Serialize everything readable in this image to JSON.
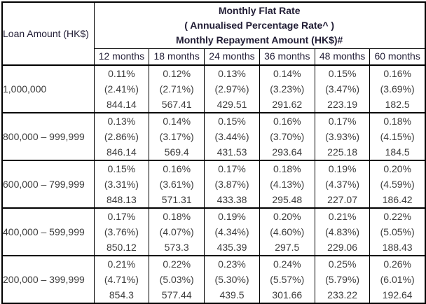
{
  "table": {
    "corner_label": "Loan Amount (HK$)",
    "header_lines": [
      "Monthly Flat Rate",
      "( Annualised Percentage Rate^ )",
      "Monthly Repayment Amount (HK$)#"
    ],
    "columns": [
      "12 months",
      "18 months",
      "24 months",
      "36 months",
      "48 months",
      "60 months"
    ],
    "cell_line_meaning": [
      "monthly-flat-rate",
      "annualised-percentage-rate",
      "monthly-repayment-amount"
    ],
    "rows": [
      {
        "label": "1,000,000",
        "cells": [
          [
            "0.11%",
            "(2.41%)",
            "844.14"
          ],
          [
            "0.12%",
            "(2.71%)",
            "567.41"
          ],
          [
            "0.13%",
            "(2.97%)",
            "429.51"
          ],
          [
            "0.14%",
            "(3.23%)",
            "291.62"
          ],
          [
            "0.15%",
            "(3.47%)",
            "223.19"
          ],
          [
            "0.16%",
            "(3.69%)",
            "182.5"
          ]
        ]
      },
      {
        "label": "800,000 – 999,999",
        "cells": [
          [
            "0.13%",
            "(2.86%)",
            "846.14"
          ],
          [
            "0.14%",
            "(3.17%)",
            "569.4"
          ],
          [
            "0.15%",
            "(3.44%)",
            "431.53"
          ],
          [
            "0.16%",
            "(3.70%)",
            "293.64"
          ],
          [
            "0.17%",
            "(3.93%)",
            "225.18"
          ],
          [
            "0.18%",
            "(4.15%)",
            "184.5"
          ]
        ]
      },
      {
        "label": "600,000 – 799,999",
        "cells": [
          [
            "0.15%",
            "(3.31%)",
            "848.13"
          ],
          [
            "0.16%",
            "(3.61%)",
            "571.31"
          ],
          [
            "0.17%",
            "(3.87%)",
            "433.38"
          ],
          [
            "0.18%",
            "(4.13%)",
            "295.48"
          ],
          [
            "0.19%",
            "(4.37%)",
            "227.07"
          ],
          [
            "0.20%",
            "(4.59%)",
            "186.42"
          ]
        ]
      },
      {
        "label": "400,000 – 599,999",
        "cells": [
          [
            "0.17%",
            "(3.76%)",
            "850.12"
          ],
          [
            "0.18%",
            "(4.07%)",
            "573.3"
          ],
          [
            "0.19%",
            "(4.34%)",
            "435.39"
          ],
          [
            "0.20%",
            "(4.60%)",
            "297.5"
          ],
          [
            "0.21%",
            "(4.83%)",
            "229.06"
          ],
          [
            "0.22%",
            "(5.05%)",
            "188.43"
          ]
        ]
      },
      {
        "label": "200,000 – 399,999",
        "cells": [
          [
            "0.21%",
            "(4.71%)",
            "854.3"
          ],
          [
            "0.22%",
            "(5.03%)",
            "577.44"
          ],
          [
            "0.23%",
            "(5.30%)",
            "439.5"
          ],
          [
            "0.24%",
            "(5.57%)",
            "301.66"
          ],
          [
            "0.25%",
            "(5.79%)",
            "233.22"
          ],
          [
            "0.26%",
            "(6.01%)",
            "192.64"
          ]
        ]
      }
    ]
  },
  "colors": {
    "header_bg": "#e3dfec",
    "header_text": "#211d35",
    "body_text": "#3d3d3d",
    "border": "#000000",
    "cell_bg": "#ffffff"
  }
}
